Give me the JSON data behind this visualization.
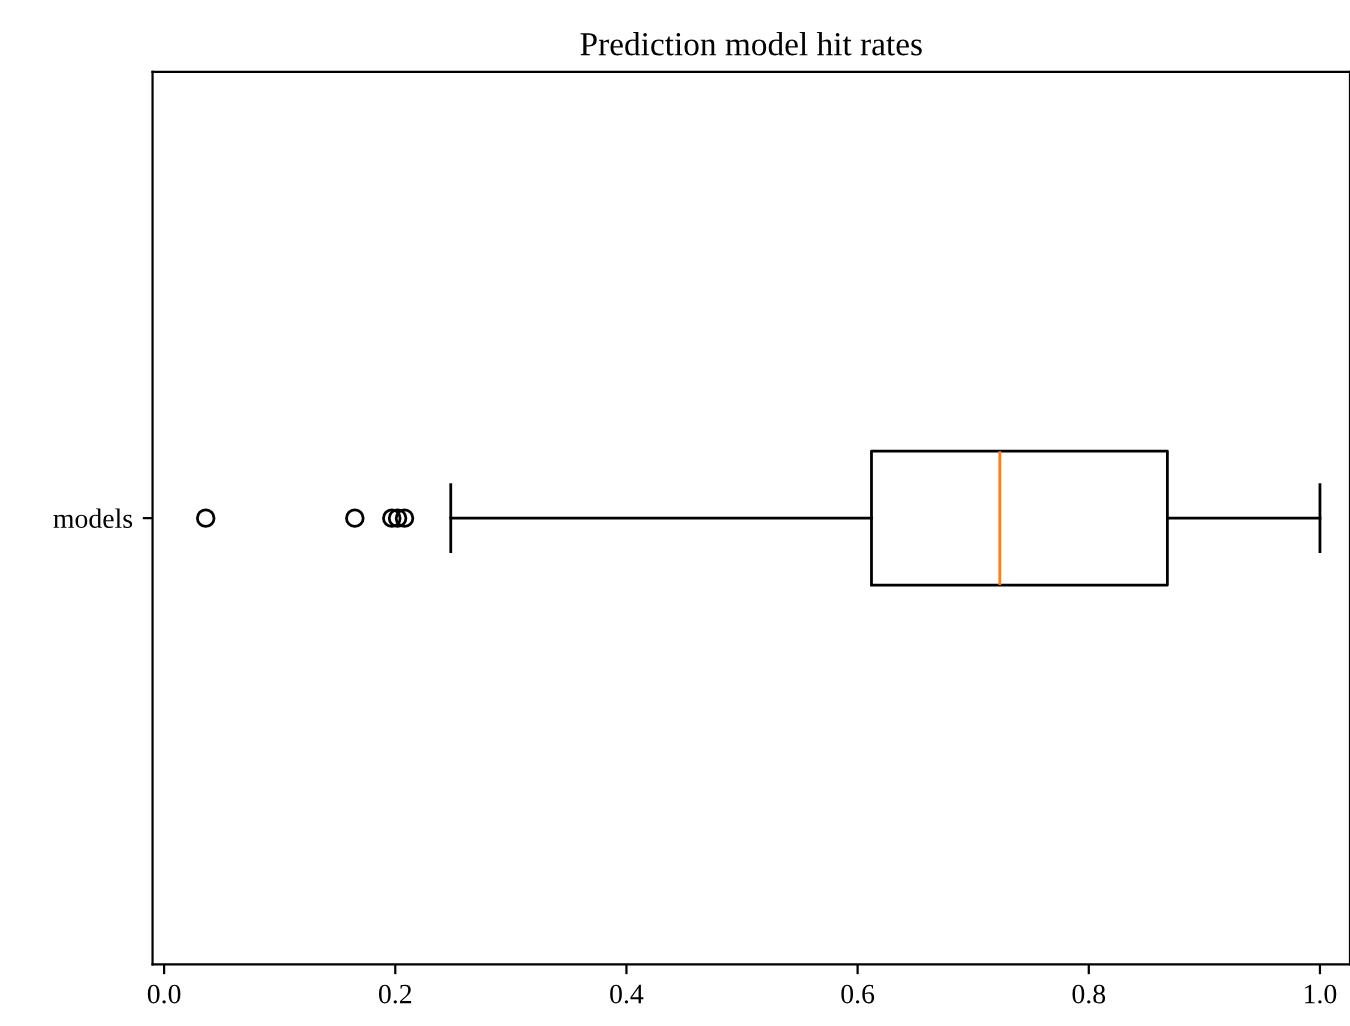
{
  "chart_data": {
    "type": "box",
    "title": "Prediction model hit rates",
    "orientation": "horizontal",
    "categories": [
      "models"
    ],
    "boxes": [
      {
        "low": 0.248,
        "q1": 0.612,
        "median": 0.723,
        "q3": 0.868,
        "high": 1.0,
        "outliers": [
          0.036,
          0.165,
          0.197,
          0.202,
          0.208
        ]
      }
    ],
    "xlim": [
      -0.01,
      1.026
    ],
    "xticks": [
      {
        "value": 0.0,
        "label": "0.0"
      },
      0.2,
      0.4,
      0.6,
      0.8,
      {
        "value": 1.0,
        "label": "1.0"
      }
    ],
    "grid": false
  }
}
